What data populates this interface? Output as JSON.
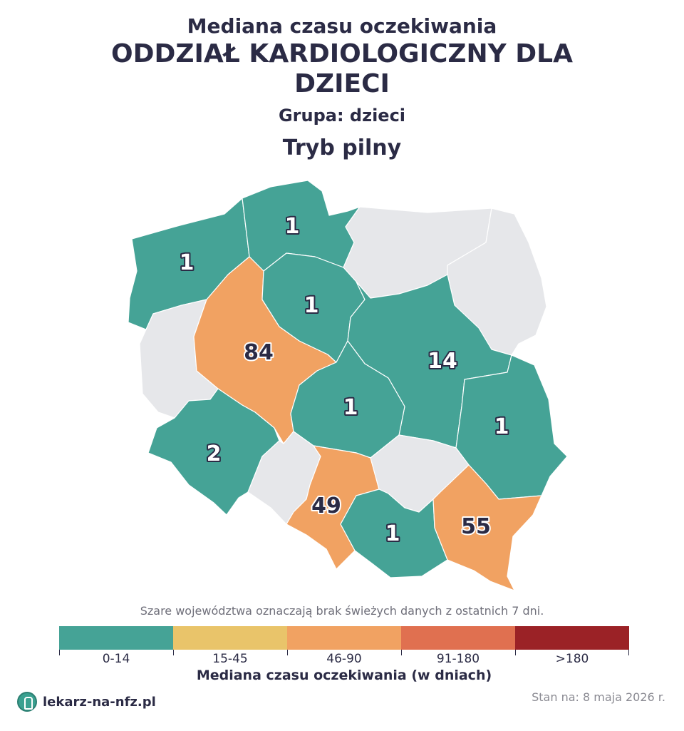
{
  "title": {
    "line1": "Mediana czasu oczekiwania",
    "line2": "ODDZIAŁ KARDIOLOGICZNY DLA DZIECI",
    "group": "Grupa: dzieci",
    "mode": "Tryb pilny"
  },
  "regions": [
    {
      "key": "zachodniopomorskie",
      "value": "1",
      "color": "#45a396"
    },
    {
      "key": "pomorskie",
      "value": "1",
      "color": "#45a396"
    },
    {
      "key": "warminsko-mazurskie",
      "value": "",
      "color": "#e6e7ea"
    },
    {
      "key": "podlaskie",
      "value": "",
      "color": "#e6e7ea"
    },
    {
      "key": "lubuskie",
      "value": "",
      "color": "#e6e7ea"
    },
    {
      "key": "wielkopolskie",
      "value": "84",
      "color": "#f1a262"
    },
    {
      "key": "kujawsko-pomorskie",
      "value": "1",
      "color": "#45a396"
    },
    {
      "key": "mazowieckie",
      "value": "14",
      "color": "#45a396"
    },
    {
      "key": "lodzkie",
      "value": "1",
      "color": "#45a396"
    },
    {
      "key": "lubelskie",
      "value": "1",
      "color": "#45a396"
    },
    {
      "key": "dolnoslaskie",
      "value": "2",
      "color": "#45a396"
    },
    {
      "key": "opolskie",
      "value": "",
      "color": "#e6e7ea"
    },
    {
      "key": "slaskie",
      "value": "49",
      "color": "#f1a262"
    },
    {
      "key": "swietokrzyskie",
      "value": "",
      "color": "#e6e7ea"
    },
    {
      "key": "malopolskie",
      "value": "1",
      "color": "#45a396"
    },
    {
      "key": "podkarpackie",
      "value": "55",
      "color": "#f1a262"
    }
  ],
  "note": "Szare województwa oznaczają brak świeżych danych z ostatnich 7 dni.",
  "legend": {
    "title": "Mediana czasu oczekiwania (w dniach)",
    "items": [
      {
        "label": "0-14",
        "color": "#45a396"
      },
      {
        "label": "15-45",
        "color": "#e9c46a"
      },
      {
        "label": "46-90",
        "color": "#f1a262"
      },
      {
        "label": "91-180",
        "color": "#e07050"
      },
      {
        "label": ">180",
        "color": "#9b2226"
      }
    ]
  },
  "footer": {
    "brand": "lekarz-na-nfz.pl",
    "date": "Stan na: 8 maja 2026 r."
  }
}
